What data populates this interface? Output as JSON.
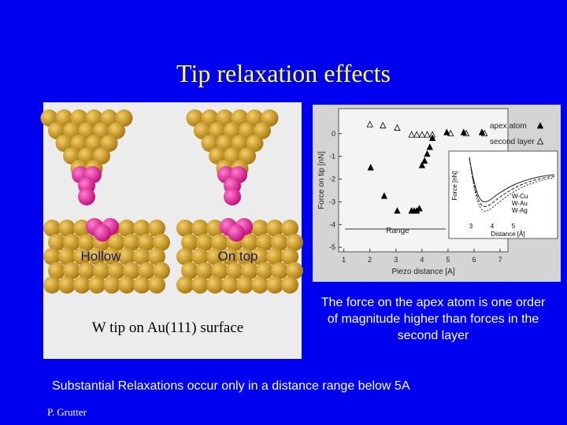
{
  "title": "Tip relaxation effects",
  "left_image": {
    "labels": [
      "Hollow",
      "On top"
    ],
    "caption": "W tip on Au(111) surface"
  },
  "plot": {
    "type": "scatter",
    "x_label": "Piezo distance [A]",
    "y_label": "Force on tip [nN]",
    "xlim": [
      0.8,
      7.3
    ],
    "ylim": [
      -5.2,
      1.1
    ],
    "xticks": [
      1,
      2,
      3,
      4,
      5,
      6,
      7
    ],
    "yticks": [
      0,
      -1,
      -2,
      -3,
      -4,
      -5
    ],
    "annotation": "Range",
    "series": [
      {
        "name": "apex atom",
        "color": "#000000",
        "x": [
          2.03,
          2.55,
          3.05,
          3.6,
          3.7,
          3.8,
          3.9,
          4.0,
          4.1,
          4.2,
          4.3,
          4.4,
          4.95,
          5.6,
          6.3
        ],
        "y": [
          -1.5,
          -2.75,
          -3.4,
          -3.4,
          -3.4,
          -3.4,
          -3.3,
          -1.4,
          -1.2,
          -0.9,
          -0.6,
          -0.2,
          0.05,
          0.05,
          0.05
        ]
      },
      {
        "name": "second layer",
        "color": "#000000",
        "x": [
          2.0,
          2.5,
          3.05,
          3.6,
          3.8,
          4.0,
          4.2,
          4.4,
          5.1,
          5.7,
          6.4
        ],
        "y": [
          0.4,
          0.35,
          0.25,
          -0.05,
          -0.05,
          -0.05,
          -0.05,
          -0.05,
          0.0,
          0.0,
          0.0
        ]
      }
    ],
    "inset": {
      "y_label": "Force [nN]",
      "x_label": "Distance [Å]",
      "xticks": [
        "3",
        "4",
        "5"
      ],
      "curve_labels": [
        "W-Cu",
        "W-Au",
        "W-Ag"
      ]
    }
  },
  "bullet": "The force on the apex atom is one order of magnitude higher than forces in the second layer",
  "summary": "Substantial Relaxations occur only in a distance range below 5A",
  "author": "P. Grutter"
}
